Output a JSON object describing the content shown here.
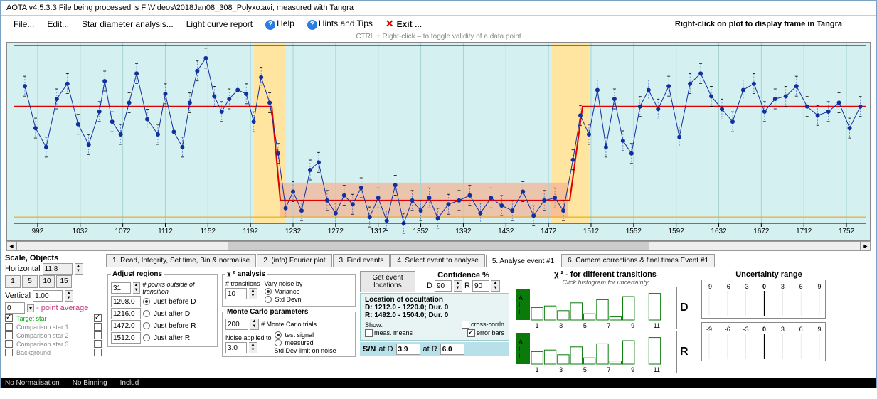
{
  "title": "AOTA v4.5.3.3   File being processed is F:\\Videos\\2018Jan08_308_Polyxo.avi, measured with Tangra",
  "menubar": {
    "file": "File...",
    "edit": "Edit...",
    "star": "Star diameter analysis...",
    "lcr": "Light curve report",
    "help": "Help",
    "hints": "Hints and Tips",
    "exit": "Exit ...",
    "plot_hint": "Right-click on plot to display frame in Tangra"
  },
  "subhint": "CTRL + Right-click  –  to toggle validity of a data point",
  "plot": {
    "xticks": [
      992,
      1032,
      1072,
      1112,
      1152,
      1192,
      1232,
      1272,
      1312,
      1352,
      1392,
      1432,
      1472,
      1512,
      1552,
      1592,
      1632,
      1672,
      1712,
      1752
    ],
    "xlim": [
      970,
      1770
    ],
    "ylim": [
      0,
      1.4
    ],
    "bg": "#d4f0f0",
    "baseline_y": 1.0,
    "bottom_y": 0.05,
    "fit_top_y": 0.92,
    "fit_bottom_y": 0.18,
    "d_start": 1212,
    "d_end": 1220,
    "r_start": 1492,
    "r_end": 1504,
    "hl_d": [
      1195,
      1225
    ],
    "hl_r": [
      1475,
      1510
    ],
    "hl_color": "#ffe5a0",
    "red_band": [
      1220,
      1490
    ],
    "series_color": "#1030a0",
    "fit_color": "#e00000",
    "points": [
      [
        980,
        1.08
      ],
      [
        990,
        0.75
      ],
      [
        1000,
        0.6
      ],
      [
        1010,
        0.98
      ],
      [
        1020,
        1.1
      ],
      [
        1030,
        0.78
      ],
      [
        1040,
        0.62
      ],
      [
        1050,
        0.88
      ],
      [
        1055,
        1.12
      ],
      [
        1062,
        0.8
      ],
      [
        1070,
        0.7
      ],
      [
        1078,
        0.95
      ],
      [
        1085,
        1.18
      ],
      [
        1095,
        0.82
      ],
      [
        1105,
        0.7
      ],
      [
        1112,
        1.02
      ],
      [
        1120,
        0.72
      ],
      [
        1128,
        0.6
      ],
      [
        1135,
        0.95
      ],
      [
        1142,
        1.2
      ],
      [
        1150,
        1.3
      ],
      [
        1158,
        1.0
      ],
      [
        1165,
        0.88
      ],
      [
        1172,
        0.98
      ],
      [
        1180,
        1.05
      ],
      [
        1188,
        1.02
      ],
      [
        1195,
        0.8
      ],
      [
        1202,
        1.15
      ],
      [
        1210,
        0.95
      ],
      [
        1218,
        0.55
      ],
      [
        1225,
        0.12
      ],
      [
        1232,
        0.25
      ],
      [
        1240,
        0.1
      ],
      [
        1248,
        0.42
      ],
      [
        1256,
        0.48
      ],
      [
        1264,
        0.18
      ],
      [
        1272,
        0.08
      ],
      [
        1280,
        0.22
      ],
      [
        1288,
        0.15
      ],
      [
        1296,
        0.28
      ],
      [
        1304,
        0.05
      ],
      [
        1312,
        0.2
      ],
      [
        1320,
        0.02
      ],
      [
        1328,
        0.3
      ],
      [
        1336,
        0.0
      ],
      [
        1344,
        0.18
      ],
      [
        1352,
        0.1
      ],
      [
        1360,
        0.2
      ],
      [
        1368,
        0.04
      ],
      [
        1378,
        0.15
      ],
      [
        1388,
        0.18
      ],
      [
        1398,
        0.22
      ],
      [
        1408,
        0.08
      ],
      [
        1418,
        0.2
      ],
      [
        1428,
        0.14
      ],
      [
        1438,
        0.1
      ],
      [
        1448,
        0.25
      ],
      [
        1458,
        0.06
      ],
      [
        1468,
        0.18
      ],
      [
        1478,
        0.2
      ],
      [
        1486,
        0.1
      ],
      [
        1495,
        0.5
      ],
      [
        1502,
        0.85
      ],
      [
        1510,
        0.7
      ],
      [
        1518,
        1.05
      ],
      [
        1526,
        0.6
      ],
      [
        1534,
        0.98
      ],
      [
        1542,
        0.65
      ],
      [
        1550,
        0.55
      ],
      [
        1558,
        0.92
      ],
      [
        1566,
        1.05
      ],
      [
        1575,
        0.9
      ],
      [
        1585,
        1.08
      ],
      [
        1595,
        0.68
      ],
      [
        1605,
        1.1
      ],
      [
        1615,
        1.18
      ],
      [
        1625,
        1.0
      ],
      [
        1635,
        0.9
      ],
      [
        1645,
        0.8
      ],
      [
        1655,
        1.05
      ],
      [
        1665,
        1.1
      ],
      [
        1675,
        0.88
      ],
      [
        1685,
        0.98
      ],
      [
        1695,
        1.0
      ],
      [
        1705,
        1.08
      ],
      [
        1715,
        0.92
      ],
      [
        1725,
        0.85
      ],
      [
        1735,
        0.88
      ],
      [
        1745,
        0.95
      ],
      [
        1755,
        0.75
      ],
      [
        1765,
        0.92
      ]
    ]
  },
  "scale": {
    "title": "Scale,  Objects",
    "horiz_lbl": "Horizontal",
    "horiz_val": "11.8",
    "btns": [
      "1",
      "5",
      "10",
      "15"
    ],
    "vert_lbl": "Vertical",
    "vert_val": "1.00",
    "pavg_val": "0",
    "pavg_lbl": "- point average",
    "rows": [
      {
        "lbl": "Target star",
        "chk1": true,
        "chk2": true,
        "color": "#0a0"
      },
      {
        "lbl": "Comparison star 1",
        "chk1": false,
        "chk2": false,
        "color": "#888"
      },
      {
        "lbl": "Comparison star 2",
        "chk1": false,
        "chk2": false,
        "color": "#888"
      },
      {
        "lbl": "Comparison star 3",
        "chk1": false,
        "chk2": false,
        "color": "#888"
      },
      {
        "lbl": "Background",
        "chk1": false,
        "chk2": false,
        "color": "#888"
      }
    ]
  },
  "tabs": [
    "1.  Read, Integrity, Set time, Bin & normalise",
    "2. (info)  Fourier plot",
    "3. Find events",
    "4. Select event to analyse",
    "5. Analyse event #1",
    "6. Camera corrections & final times Event #1"
  ],
  "active_tab": 4,
  "adjust": {
    "title": "Adjust regions",
    "pts_val": "31",
    "pts_lbl": "# points outside of transition",
    "rows": [
      {
        "val": "1208.0",
        "lbl": "Just before D",
        "on": true
      },
      {
        "val": "1216.0",
        "lbl": "Just after D",
        "on": false
      },
      {
        "val": "1472.0",
        "lbl": "Just before R",
        "on": false
      },
      {
        "val": "1512.0",
        "lbl": "Just after R",
        "on": false
      }
    ]
  },
  "chi2": {
    "title": "χ ² analysis",
    "trans_lbl": "# transitions",
    "trans_val": "10",
    "vary_lbl": "Vary noise by",
    "opt1": "Variance",
    "opt2": "Std Devn",
    "sel": 0
  },
  "mc": {
    "title": "Monte Carlo parameters",
    "trials_val": "200",
    "trials_lbl": "# Monte Carlo trials",
    "noise_lbl": "Noise applied to",
    "noise_val": "3.0",
    "opt1": "test signal",
    "opt2": "measured",
    "sel": 0,
    "limit_lbl": "Std Dev limit on noise"
  },
  "confidence": {
    "btn": "Get event locations",
    "title": "Confidence %",
    "d_lbl": "D",
    "d_val": "90",
    "r_lbl": "R",
    "r_val": "90",
    "loc_title": "Location of occultation",
    "d_line": "D: 1212.0 - 1220.0; Dur. 0",
    "r_line": "R: 1492.0 - 1504.0; Dur. 0",
    "show_lbl": "Show:",
    "cc_lbl": "cross-corrln",
    "mm_lbl": "meas. means",
    "eb_lbl": "error bars",
    "sn_lbl": "S/N",
    "atd_lbl": "at D",
    "atd_val": "3.9",
    "atr_lbl": "at R",
    "atr_val": "6.0"
  },
  "chi_trans": {
    "title": "χ ² - for different transitions",
    "sub": "Click histogram for uncertainty",
    "xticks": [
      "1",
      "3",
      "5",
      "7",
      "9",
      "11"
    ],
    "d_lbl": "D",
    "r_lbl": "R"
  },
  "unc": {
    "title": "Uncertainty range",
    "xticks": [
      "-9",
      "-6",
      "-3",
      "0",
      "3",
      "6",
      "9"
    ]
  },
  "status": {
    "a": "No Normalisation",
    "b": "No Binning",
    "c": "Includ"
  }
}
